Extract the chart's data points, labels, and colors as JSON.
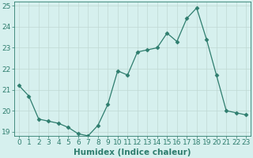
{
  "x": [
    0,
    1,
    2,
    3,
    4,
    5,
    6,
    7,
    8,
    9,
    10,
    11,
    12,
    13,
    14,
    15,
    16,
    17,
    18,
    19,
    20,
    21,
    22,
    23
  ],
  "y": [
    21.2,
    20.7,
    19.6,
    19.5,
    19.4,
    19.2,
    18.9,
    18.8,
    19.3,
    20.3,
    21.9,
    21.7,
    22.8,
    22.9,
    23.0,
    23.7,
    23.3,
    24.4,
    24.9,
    23.4,
    21.7,
    20.0,
    19.9,
    19.8
  ],
  "line_color": "#2e7d6e",
  "marker": "D",
  "marker_size": 2.5,
  "bg_color": "#d6f0ee",
  "grid_color": "#c0d8d4",
  "xlabel": "Humidex (Indice chaleur)",
  "ylim": [
    18.8,
    25.2
  ],
  "xlim": [
    -0.5,
    23.5
  ],
  "yticks": [
    19,
    20,
    21,
    22,
    23,
    24,
    25
  ],
  "xtick_labels": [
    "0",
    "1",
    "2",
    "3",
    "4",
    "5",
    "6",
    "7",
    "8",
    "9",
    "10",
    "11",
    "12",
    "13",
    "14",
    "15",
    "16",
    "17",
    "18",
    "19",
    "20",
    "21",
    "22",
    "23"
  ],
  "axis_color": "#2e7d6e",
  "tick_color": "#2e7d6e",
  "label_fontsize": 7.5,
  "tick_fontsize": 6.5
}
